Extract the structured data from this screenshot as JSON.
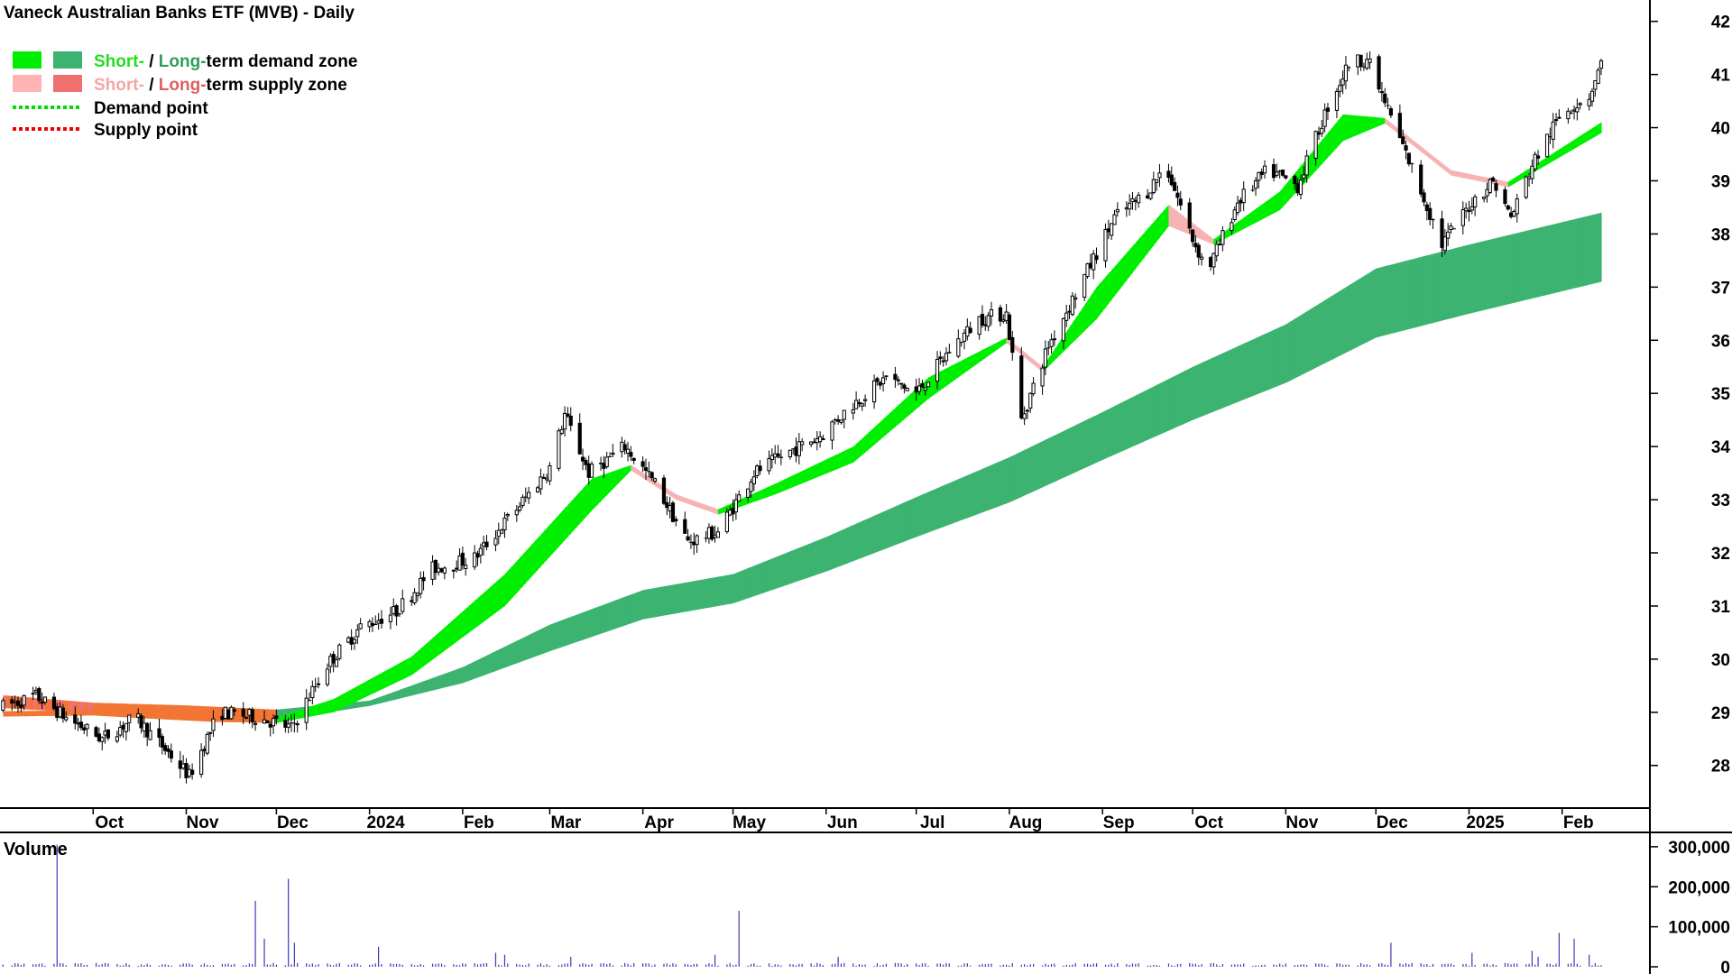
{
  "chart_data": {
    "type": "candlestick",
    "title": "Vaneck Australian Banks ETF (MVB) - Daily",
    "legend": [
      {
        "prefix": "Short-",
        "mid": " / ",
        "long": "Long-",
        "suffix": "term demand zone",
        "short_color": "#22dd22",
        "long_color": "#2e9e5a",
        "swatch_colors": [
          "#00ee00",
          "#3cb371"
        ]
      },
      {
        "prefix": "Short-",
        "mid": " / ",
        "long": "Long-",
        "suffix": "term supply zone",
        "short_color": "#f4a6a6",
        "long_color": "#e06060",
        "swatch_colors": [
          "#ffb3b3",
          "#f07070"
        ]
      },
      {
        "label": "Demand point",
        "line_color": "#00dd00"
      },
      {
        "label": "Supply point",
        "line_color": "#ee0000"
      }
    ],
    "legend_placement": "top-left",
    "x_tick_labels": [
      "Oct",
      "Nov",
      "Dec",
      "2024",
      "Feb",
      "Mar",
      "Apr",
      "May",
      "Jun",
      "Jul",
      "Aug",
      "Sep",
      "Oct",
      "Nov",
      "Dec",
      "2025",
      "Feb"
    ],
    "x_tick_dates": [
      "2023-10-01",
      "2023-11-01",
      "2023-12-01",
      "2024-01-01",
      "2024-02-01",
      "2024-03-01",
      "2024-04-01",
      "2024-05-01",
      "2024-06-01",
      "2024-07-01",
      "2024-08-01",
      "2024-09-01",
      "2024-10-01",
      "2024-11-01",
      "2024-12-01",
      "2025-01-01",
      "2025-02-01"
    ],
    "x_range": [
      "2023-08-31",
      "2025-02-14"
    ],
    "y_ticks": [
      28,
      29,
      30,
      31,
      32,
      33,
      34,
      35,
      36,
      37,
      38,
      39,
      40,
      41,
      42
    ],
    "y_range": [
      27.3,
      42.3
    ],
    "y_axis_side": "right",
    "price_path": [
      [
        "2023-09-01",
        29.1
      ],
      [
        "2023-09-12",
        29.3
      ],
      [
        "2023-09-22",
        28.9
      ],
      [
        "2023-10-04",
        28.5
      ],
      [
        "2023-10-15",
        28.9
      ],
      [
        "2023-10-25",
        28.3
      ],
      [
        "2023-11-02",
        27.8
      ],
      [
        "2023-11-12",
        29.0
      ],
      [
        "2023-11-25",
        28.9
      ],
      [
        "2023-12-06",
        28.7
      ],
      [
        "2023-12-18",
        29.9
      ],
      [
        "2023-12-29",
        30.6
      ],
      [
        "2024-01-10",
        30.9
      ],
      [
        "2024-01-22",
        31.7
      ],
      [
        "2024-02-05",
        31.9
      ],
      [
        "2024-02-20",
        32.9
      ],
      [
        "2024-03-01",
        33.6
      ],
      [
        "2024-03-06",
        34.6
      ],
      [
        "2024-03-14",
        33.5
      ],
      [
        "2024-03-26",
        34.0
      ],
      [
        "2024-04-05",
        33.3
      ],
      [
        "2024-04-16",
        32.2
      ],
      [
        "2024-04-26",
        32.4
      ],
      [
        "2024-05-08",
        33.5
      ],
      [
        "2024-05-20",
        33.9
      ],
      [
        "2024-05-30",
        34.2
      ],
      [
        "2024-06-10",
        34.8
      ],
      [
        "2024-06-21",
        35.3
      ],
      [
        "2024-07-01",
        35.0
      ],
      [
        "2024-07-12",
        35.8
      ],
      [
        "2024-07-22",
        36.4
      ],
      [
        "2024-07-31",
        36.5
      ],
      [
        "2024-08-05",
        34.5
      ],
      [
        "2024-08-14",
        35.9
      ],
      [
        "2024-08-26",
        37.2
      ],
      [
        "2024-09-05",
        38.3
      ],
      [
        "2024-09-16",
        38.8
      ],
      [
        "2024-09-22",
        39.3
      ],
      [
        "2024-10-01",
        37.9
      ],
      [
        "2024-10-06",
        37.3
      ],
      [
        "2024-10-16",
        38.6
      ],
      [
        "2024-10-26",
        39.2
      ],
      [
        "2024-11-05",
        38.9
      ],
      [
        "2024-11-15",
        40.4
      ],
      [
        "2024-11-22",
        41.2
      ],
      [
        "2024-11-28",
        41.3
      ],
      [
        "2024-12-06",
        40.2
      ],
      [
        "2024-12-16",
        38.8
      ],
      [
        "2024-12-23",
        37.8
      ],
      [
        "2025-01-02",
        38.6
      ],
      [
        "2025-01-09",
        39.0
      ],
      [
        "2025-01-15",
        38.3
      ],
      [
        "2025-01-22",
        39.3
      ],
      [
        "2025-02-01",
        40.3
      ],
      [
        "2025-02-10",
        40.6
      ],
      [
        "2025-02-14",
        41.2
      ]
    ],
    "short_zone": [
      [
        "2023-09-01",
        28.92,
        29.02
      ],
      [
        "2023-10-01",
        28.94,
        29.04
      ],
      [
        "2023-10-20",
        28.88,
        28.98
      ],
      [
        "2023-11-10",
        28.82,
        28.92
      ],
      [
        "2023-12-01",
        28.8,
        28.9
      ],
      [
        "2023-12-20",
        29.0,
        29.25
      ],
      [
        "2024-01-15",
        29.7,
        30.05
      ],
      [
        "2024-02-15",
        31.0,
        31.6
      ],
      [
        "2024-03-15",
        32.8,
        33.4
      ],
      [
        "2024-03-28",
        33.55,
        33.65
      ],
      [
        "2024-04-12",
        33.0,
        33.1
      ],
      [
        "2024-04-26",
        32.72,
        32.82
      ],
      [
        "2024-05-15",
        33.1,
        33.3
      ],
      [
        "2024-06-10",
        33.7,
        34.0
      ],
      [
        "2024-07-05",
        34.9,
        35.3
      ],
      [
        "2024-07-31",
        35.95,
        36.05
      ],
      [
        "2024-08-12",
        35.4,
        35.5
      ],
      [
        "2024-08-30",
        36.4,
        37.0
      ],
      [
        "2024-09-23",
        38.15,
        38.55
      ],
      [
        "2024-10-08",
        37.8,
        37.9
      ],
      [
        "2024-10-30",
        38.45,
        38.8
      ],
      [
        "2024-11-20",
        39.75,
        40.25
      ],
      [
        "2024-12-04",
        40.08,
        40.18
      ],
      [
        "2024-12-26",
        39.1,
        39.2
      ],
      [
        "2025-01-14",
        38.88,
        38.98
      ],
      [
        "2025-02-14",
        39.9,
        40.1
      ]
    ],
    "long_zone": [
      [
        "2023-09-01",
        29.08,
        29.32
      ],
      [
        "2023-10-01",
        28.98,
        29.18
      ],
      [
        "2023-11-01",
        28.93,
        29.13
      ],
      [
        "2023-12-01",
        28.85,
        29.05
      ],
      [
        "2024-01-01",
        29.12,
        29.22
      ],
      [
        "2024-02-01",
        29.55,
        29.85
      ],
      [
        "2024-03-01",
        30.15,
        30.65
      ],
      [
        "2024-04-01",
        30.75,
        31.3
      ],
      [
        "2024-05-01",
        31.05,
        31.6
      ],
      [
        "2024-06-01",
        31.65,
        32.3
      ],
      [
        "2024-07-01",
        32.3,
        33.05
      ],
      [
        "2024-08-01",
        32.95,
        33.8
      ],
      [
        "2024-09-01",
        33.75,
        34.65
      ],
      [
        "2024-10-01",
        34.5,
        35.5
      ],
      [
        "2024-11-01",
        35.2,
        36.3
      ],
      [
        "2024-12-01",
        36.05,
        37.35
      ],
      [
        "2025-01-01",
        36.5,
        37.8
      ],
      [
        "2025-02-14",
        37.1,
        38.4
      ]
    ],
    "volume_label": "Volume",
    "volume_ticks": [
      0,
      100000,
      200000,
      300000
    ],
    "volume_tick_labels": [
      "0",
      "100,000",
      "200,000",
      "300,000"
    ],
    "volume_range": [
      0,
      320000
    ],
    "volume_baseline": 6000,
    "volume_spikes": [
      [
        "2023-09-19",
        305000
      ],
      [
        "2023-11-24",
        165000
      ],
      [
        "2023-11-27",
        70000
      ],
      [
        "2023-12-05",
        220000
      ],
      [
        "2023-12-07",
        60000
      ],
      [
        "2024-01-04",
        50000
      ],
      [
        "2024-02-12",
        35000
      ],
      [
        "2024-02-15",
        30000
      ],
      [
        "2024-03-08",
        25000
      ],
      [
        "2024-04-25",
        30000
      ],
      [
        "2024-05-03",
        140000
      ],
      [
        "2024-06-05",
        25000
      ],
      [
        "2024-12-01",
        30000
      ],
      [
        "2024-12-06",
        60000
      ],
      [
        "2025-01-02",
        35000
      ],
      [
        "2025-01-22",
        40000
      ],
      [
        "2025-01-24",
        25000
      ],
      [
        "2025-01-31",
        85000
      ],
      [
        "2025-02-05",
        70000
      ],
      [
        "2025-02-10",
        30000
      ]
    ],
    "colors": {
      "short_demand": "#00ee00",
      "long_demand": "#3cb371",
      "short_supply": "#f7b3b3",
      "long_supply": "#ef7272",
      "transition": "#f27534",
      "candle": "#000000",
      "volume": "#3b3bb4",
      "volume_title": "#3b2b8c",
      "axis": "#000000"
    }
  }
}
